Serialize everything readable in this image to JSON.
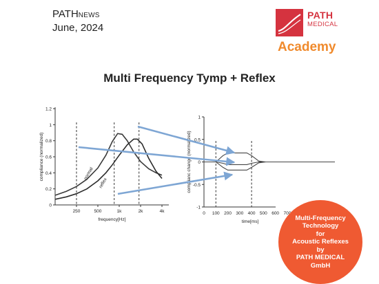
{
  "header": {
    "brand_big": "PATH",
    "brand_small": "NEWS",
    "date": "June, 2024"
  },
  "logo": {
    "line1": "PATH",
    "line2": "MEDICAL",
    "line3": "Academy",
    "colors": {
      "red": "#d5333f",
      "orange": "#f08a2c"
    }
  },
  "title": "Multi Frequency Tymp + Reflex",
  "chart_data": [
    {
      "type": "line",
      "xlabel": "frequency[Hz]",
      "ylabel": "compliance (normalized)",
      "x_scale": "log",
      "x_ticks": [
        {
          "value": 250,
          "label": "250"
        },
        {
          "value": 500,
          "label": "500"
        },
        {
          "value": 1000,
          "label": "1k"
        },
        {
          "value": 2000,
          "label": "2k"
        },
        {
          "value": 4000,
          "label": "4k"
        }
      ],
      "xlim": [
        125,
        5000
      ],
      "y_ticks": [
        0,
        0.2,
        0.4,
        0.6,
        0.8,
        1,
        1.2
      ],
      "ylim": [
        0,
        1.2
      ],
      "dashed_x": [
        250,
        850,
        1900
      ],
      "series": [
        {
          "name": "normal",
          "x": [
            125,
            180,
            250,
            350,
            500,
            650,
            800,
            950,
            1100,
            1300,
            1600,
            2000,
            2600,
            3300,
            4000
          ],
          "y": [
            0.12,
            0.17,
            0.23,
            0.32,
            0.46,
            0.62,
            0.79,
            0.89,
            0.88,
            0.8,
            0.66,
            0.54,
            0.45,
            0.4,
            0.37
          ]
        },
        {
          "name": "reflex",
          "x": [
            125,
            180,
            250,
            350,
            500,
            650,
            800,
            1000,
            1300,
            1600,
            1800,
            2100,
            2600,
            3300,
            4000
          ],
          "y": [
            0.07,
            0.1,
            0.14,
            0.2,
            0.3,
            0.4,
            0.5,
            0.62,
            0.75,
            0.82,
            0.82,
            0.76,
            0.58,
            0.42,
            0.33
          ]
        }
      ],
      "annotations": [
        "normal",
        "reflex"
      ]
    },
    {
      "type": "line",
      "xlabel": "time[ms]",
      "ylabel": "complianc change (normalized)",
      "x_ticks": [
        0,
        100,
        200,
        300,
        400,
        500,
        600,
        700
      ],
      "xlim": [
        0,
        1100
      ],
      "y_ticks": [
        -1,
        -0.5,
        0,
        0.5,
        1
      ],
      "ylim": [
        -1,
        1
      ],
      "dashed_x": [
        100,
        400
      ],
      "series": [
        {
          "name": "upper",
          "x": [
            0,
            100,
            160,
            200,
            360,
            400,
            460,
            520,
            1100
          ],
          "y": [
            0,
            0,
            0.14,
            0.2,
            0.2,
            0.14,
            0.02,
            0,
            0
          ]
        },
        {
          "name": "middle",
          "x": [
            0,
            100,
            160,
            200,
            360,
            400,
            460,
            520,
            1100
          ],
          "y": [
            0,
            0,
            -0.03,
            -0.06,
            -0.06,
            -0.03,
            0,
            0,
            0
          ]
        },
        {
          "name": "lower",
          "x": [
            0,
            100,
            160,
            200,
            360,
            400,
            460,
            520,
            1100
          ],
          "y": [
            0,
            0,
            -0.12,
            -0.18,
            -0.18,
            -0.12,
            -0.02,
            0,
            0
          ]
        }
      ]
    }
  ],
  "badge": {
    "lines": [
      "Multi-Frequency",
      "Technology",
      "for",
      "Acoustic Reflexes",
      "by",
      "PATH MEDICAL",
      "GmbH"
    ],
    "color": "#ef5a32"
  },
  "arrow_color": "#7ea6d4"
}
